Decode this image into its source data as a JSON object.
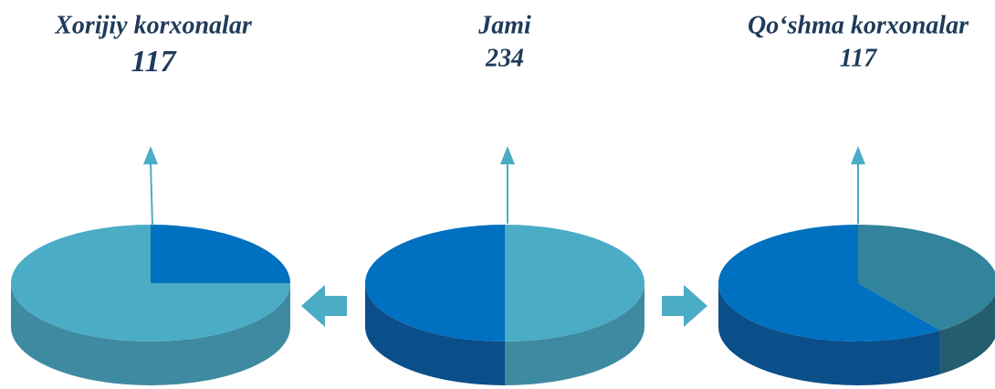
{
  "chart_data": [
    {
      "type": "pie",
      "title": "Xorijiy korxonalar",
      "value": 117,
      "values": [
        25,
        75
      ],
      "colors": [
        "#0070c0",
        "#4bacc6"
      ],
      "side_colors": [
        "#0b4f8a",
        "#3e8aa0"
      ]
    },
    {
      "type": "pie",
      "title": "Jami",
      "value": 234,
      "values": [
        50,
        50
      ],
      "colors": [
        "#4bacc6",
        "#0070c0"
      ],
      "side_colors": [
        "#3e8aa0",
        "#0b4f8a"
      ]
    },
    {
      "type": "pie",
      "title": "Qo‘shma korxonalar",
      "value": 117,
      "values": [
        40,
        60
      ],
      "colors": [
        "#31849b",
        "#0070c0"
      ],
      "side_colors": [
        "#245e6e",
        "#0b4f8a"
      ]
    }
  ]
}
